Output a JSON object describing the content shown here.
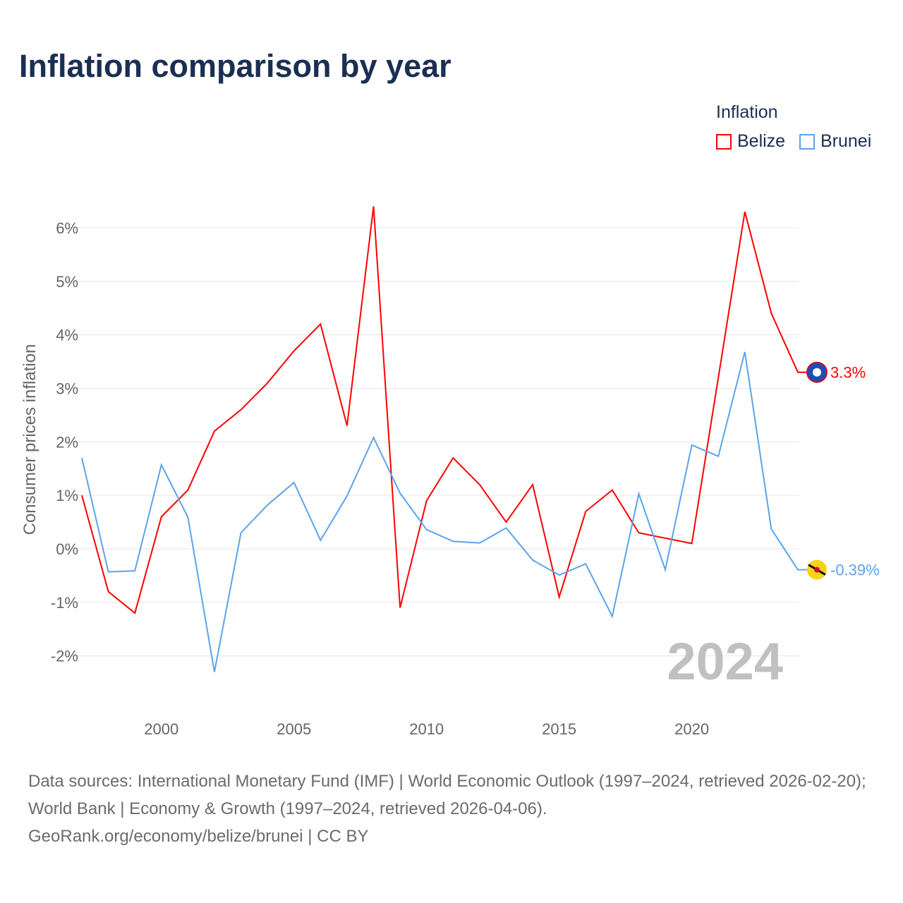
{
  "title": "Inflation comparison by year",
  "legend": {
    "title": "Inflation",
    "items": [
      {
        "label": "Belize",
        "color": "#ff0000"
      },
      {
        "label": "Brunei",
        "color": "#5ba4ea"
      }
    ]
  },
  "watermark_year": "2024",
  "footer": {
    "line1": "Data sources: International Monetary Fund (IMF) | World Economic Outlook (1997–2024, retrieved 2026-02-20); World Bank | Economy & Growth (1997–2024, retrieved 2026-04-06).",
    "line2": "GeoRank.org/economy/belize/brunei | CC BY"
  },
  "chart_data": {
    "type": "line",
    "title": "Inflation comparison by year",
    "xlabel": "",
    "ylabel": "Consumer prices inflation",
    "x": [
      1997,
      1998,
      1999,
      2000,
      2001,
      2002,
      2003,
      2004,
      2005,
      2006,
      2007,
      2008,
      2009,
      2010,
      2011,
      2012,
      2013,
      2014,
      2015,
      2016,
      2017,
      2018,
      2019,
      2020,
      2021,
      2022,
      2023,
      2024
    ],
    "xlim": [
      1997,
      2024
    ],
    "ylim": [
      -2.9,
      6.6
    ],
    "x_ticks": [
      2000,
      2005,
      2010,
      2015,
      2020
    ],
    "y_ticks": [
      -2,
      -1,
      0,
      1,
      2,
      3,
      4,
      5,
      6
    ],
    "y_tick_labels": [
      "-2%",
      "-1%",
      "0%",
      "1%",
      "2%",
      "3%",
      "4%",
      "5%",
      "6%"
    ],
    "grid": true,
    "legend_position": "top-right",
    "series": [
      {
        "name": "Belize",
        "color": "#ff0000",
        "end_label": "3.3%",
        "values": [
          1.0,
          -0.8,
          -1.2,
          0.6,
          1.1,
          2.2,
          2.6,
          3.1,
          3.7,
          4.2,
          2.3,
          6.4,
          -1.1,
          0.9,
          1.7,
          1.2,
          0.5,
          1.2,
          -0.9,
          0.7,
          1.1,
          0.3,
          0.2,
          0.1,
          3.2,
          6.3,
          4.4,
          3.3
        ]
      },
      {
        "name": "Brunei",
        "color": "#5ba4ea",
        "end_label": "-0.39%",
        "values": [
          1.7,
          -0.43,
          -0.41,
          1.57,
          0.59,
          -2.3,
          0.3,
          0.82,
          1.24,
          0.16,
          0.99,
          2.08,
          1.04,
          0.36,
          0.14,
          0.11,
          0.39,
          -0.21,
          -0.49,
          -0.28,
          -1.26,
          1.03,
          -0.39,
          1.94,
          1.73,
          3.68,
          0.37,
          -0.39
        ]
      }
    ]
  }
}
